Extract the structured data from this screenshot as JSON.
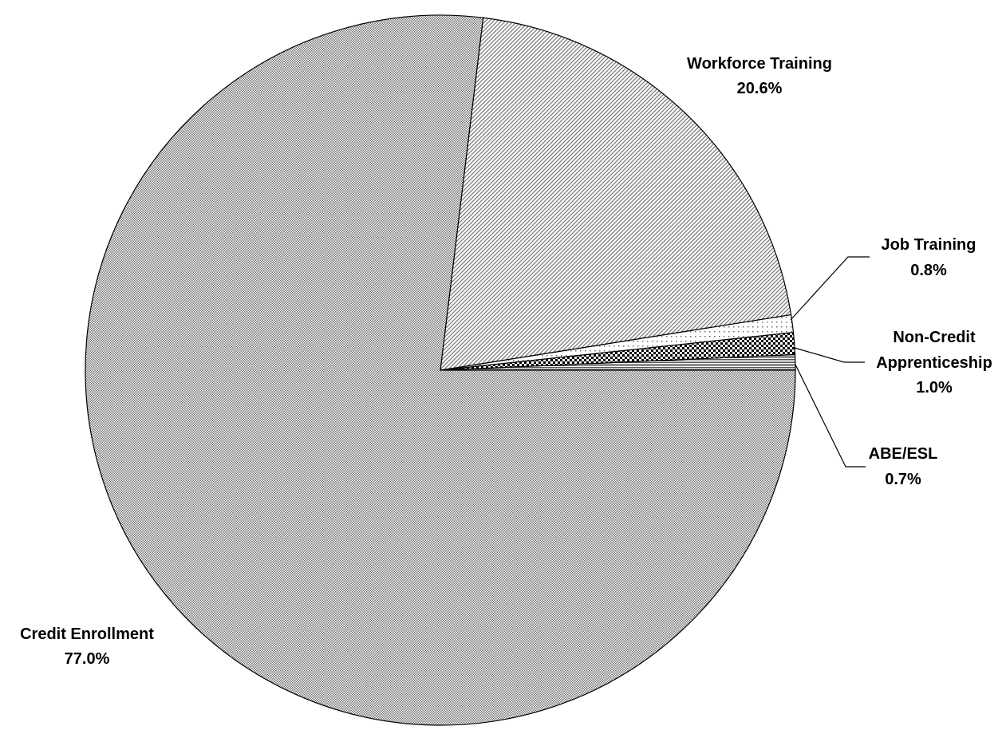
{
  "chart_data": {
    "type": "pie",
    "start_angle_deg": 0,
    "direction": "counterclockwise",
    "slices": [
      {
        "name": "ABE/ESL",
        "label": "ABE/ESL",
        "value": 0.7,
        "value_label": "0.7%",
        "pattern": "hlines"
      },
      {
        "name": "Non-Credit Apprenticeship",
        "label": [
          "Non-Credit",
          "Apprenticeship"
        ],
        "value": 1.0,
        "value_label": "1.0%",
        "pattern": "checker"
      },
      {
        "name": "Job Training",
        "label": "Job Training",
        "value": 0.8,
        "value_label": "0.8%",
        "pattern": "dots"
      },
      {
        "name": "Workforce Training",
        "label": "Workforce Training",
        "value": 20.6,
        "value_label": "20.6%",
        "pattern": "diagonal"
      },
      {
        "name": "Credit Enrollment",
        "label": "Credit Enrollment",
        "value": 77.0,
        "value_label": "77.0%",
        "pattern": "fine-grid"
      }
    ],
    "colors": {
      "stroke": "#000000",
      "fill_dark": "#5a5a5a",
      "fill_light": "#ffffff"
    }
  }
}
